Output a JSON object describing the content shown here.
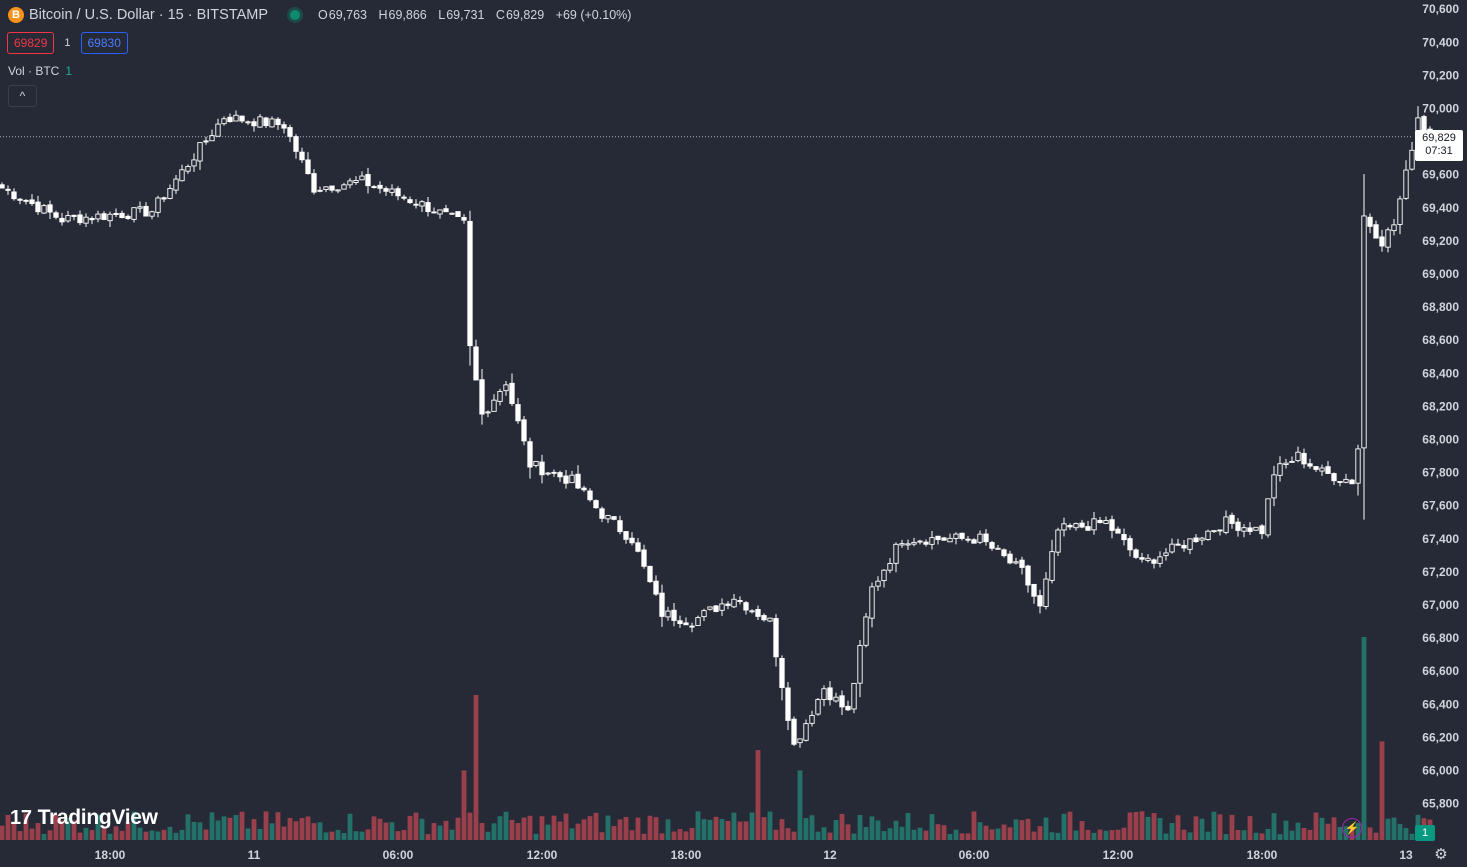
{
  "header": {
    "symbol_title": "Bitcoin / U.S. Dollar · 15 · BITSTAMP",
    "logo_glyph": "B",
    "ohlc": {
      "o_label": "O",
      "o_value": "69,763",
      "h_label": "H",
      "h_value": "69,866",
      "l_label": "L",
      "l_value": "69,731",
      "c_label": "C",
      "c_value": "69,829",
      "change": "+69 (+0.10%)"
    },
    "sell_price": "69829",
    "spread": "1",
    "buy_price": "69830",
    "volume_label": "Vol · BTC",
    "volume_value": "1",
    "collapse_glyph": "^"
  },
  "branding": {
    "logo_text": "TradingView",
    "logo_mark": "17"
  },
  "price_scale_badge": {
    "price": "69,829",
    "countdown": "07:31"
  },
  "volume_badge": "1",
  "colors": {
    "background": "#262a36",
    "candle_up": "#ffffff",
    "candle_down": "#ffffff",
    "volume_up": "#22ab94",
    "volume_down": "#f7525f",
    "accent_buy": "#2962ff",
    "accent_sell": "#f23645"
  },
  "icons": [
    "bitcoin-logo-icon",
    "live-status-icon",
    "chevron-up-icon",
    "bolt-icon",
    "gear-icon"
  ],
  "chart_data": {
    "type": "candlestick",
    "title": "Bitcoin / U.S. Dollar · 15 · BITSTAMP",
    "ylim": [
      65700,
      70650
    ],
    "y_ticks": [
      "70,600",
      "70,400",
      "70,200",
      "70,000",
      "69,800",
      "69,600",
      "69,400",
      "69,200",
      "69,000",
      "68,800",
      "68,600",
      "68,400",
      "68,200",
      "68,000",
      "67,800",
      "67,600",
      "67,400",
      "67,200",
      "67,000",
      "66,800",
      "66,600",
      "66,400",
      "66,200",
      "66,000",
      "65,800"
    ],
    "x_ticks": [
      "18:00",
      "11",
      "06:00",
      "12:00",
      "18:00",
      "12",
      "06:00",
      "12:00",
      "18:00",
      "13"
    ],
    "x_tick_bar_index": [
      18,
      42,
      66,
      90,
      114,
      138,
      162,
      186,
      210,
      234
    ],
    "last_price": 69829,
    "key_points": [
      {
        "bar": 0,
        "price": 69520
      },
      {
        "bar": 10,
        "price": 69330
      },
      {
        "bar": 25,
        "price": 69380
      },
      {
        "bar": 37,
        "price": 69950
      },
      {
        "bar": 47,
        "price": 69900
      },
      {
        "bar": 52,
        "price": 69520
      },
      {
        "bar": 60,
        "price": 69560
      },
      {
        "bar": 70,
        "price": 69420
      },
      {
        "bar": 77,
        "price": 69300
      },
      {
        "bar": 78,
        "price": 68550
      },
      {
        "bar": 80,
        "price": 68150
      },
      {
        "bar": 84,
        "price": 68350
      },
      {
        "bar": 88,
        "price": 67850
      },
      {
        "bar": 95,
        "price": 67750
      },
      {
        "bar": 100,
        "price": 67550
      },
      {
        "bar": 105,
        "price": 67400
      },
      {
        "bar": 110,
        "price": 66950
      },
      {
        "bar": 115,
        "price": 66900
      },
      {
        "bar": 122,
        "price": 67050
      },
      {
        "bar": 128,
        "price": 66900
      },
      {
        "bar": 132,
        "price": 66150
      },
      {
        "bar": 137,
        "price": 66500
      },
      {
        "bar": 141,
        "price": 66350
      },
      {
        "bar": 145,
        "price": 67100
      },
      {
        "bar": 150,
        "price": 67400
      },
      {
        "bar": 158,
        "price": 67400
      },
      {
        "bar": 163,
        "price": 67400
      },
      {
        "bar": 170,
        "price": 67200
      },
      {
        "bar": 173,
        "price": 66980
      },
      {
        "bar": 176,
        "price": 67450
      },
      {
        "bar": 184,
        "price": 67500
      },
      {
        "bar": 190,
        "price": 67250
      },
      {
        "bar": 196,
        "price": 67350
      },
      {
        "bar": 204,
        "price": 67500
      },
      {
        "bar": 210,
        "price": 67450
      },
      {
        "bar": 212,
        "price": 67800
      },
      {
        "bar": 216,
        "price": 67900
      },
      {
        "bar": 220,
        "price": 67800
      },
      {
        "bar": 225,
        "price": 67750
      },
      {
        "bar": 226,
        "price": 67950
      },
      {
        "bar": 227,
        "price": 69350
      },
      {
        "bar": 230,
        "price": 69200
      },
      {
        "bar": 232,
        "price": 69300
      },
      {
        "bar": 234,
        "price": 69600
      },
      {
        "bar": 236,
        "price": 69950
      },
      {
        "bar": 238,
        "price": 69829
      }
    ],
    "volume_spikes": [
      {
        "bar": 79,
        "value": 100
      },
      {
        "bar": 77,
        "value": 48
      },
      {
        "bar": 126,
        "value": 62
      },
      {
        "bar": 133,
        "value": 48
      },
      {
        "bar": 227,
        "value": 140
      },
      {
        "bar": 230,
        "value": 68
      }
    ]
  }
}
